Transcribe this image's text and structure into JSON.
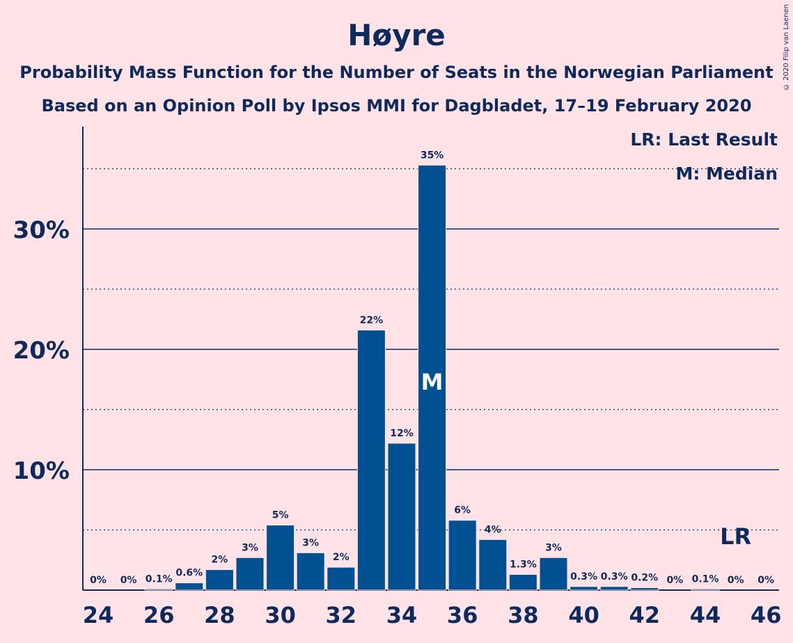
{
  "title": "Høyre",
  "subtitle1": "Probability Mass Function for the Number of Seats in the Norwegian Parliament",
  "subtitle2": "Based on an Opinion Poll by Ipsos MMI for Dagbladet, 17–19 February 2020",
  "credit": "© 2020 Filip van Laenen",
  "legend": {
    "lr": "LR: Last Result",
    "m": "M: Median"
  },
  "colors": {
    "bar": "#005092",
    "text": "#0d2a5e",
    "background": "#ffe3e6"
  },
  "chart_data": {
    "type": "bar",
    "categories": [
      24,
      25,
      26,
      27,
      28,
      29,
      30,
      31,
      32,
      33,
      34,
      35,
      36,
      37,
      38,
      39,
      40,
      41,
      42,
      43,
      44,
      45,
      46
    ],
    "values": [
      0,
      0,
      0.1,
      0.6,
      1.7,
      2.7,
      5.4,
      3.1,
      1.9,
      21.6,
      12.2,
      35.3,
      5.8,
      4.2,
      1.3,
      2.7,
      0.3,
      0.3,
      0.2,
      0,
      0.1,
      0,
      0
    ],
    "data_labels": [
      "0%",
      "0%",
      "0.1%",
      "0.6%",
      "2%",
      "3%",
      "5%",
      "3%",
      "2%",
      "22%",
      "12%",
      "35%",
      "6%",
      "4%",
      "1.3%",
      "3%",
      "0.3%",
      "0.3%",
      "0.2%",
      "0%",
      "0.1%",
      "0%",
      "0%"
    ],
    "x_ticks": [
      "24",
      "26",
      "28",
      "30",
      "32",
      "34",
      "36",
      "38",
      "40",
      "42",
      "44",
      "46"
    ],
    "y_ticks": [
      {
        "value": 10,
        "label": "10%"
      },
      {
        "value": 20,
        "label": "20%"
      },
      {
        "value": 30,
        "label": "30%"
      }
    ],
    "ylim": [
      0,
      38.5
    ],
    "median": 35,
    "median_label": "M",
    "last_result": 45,
    "last_result_label": "LR",
    "legend_position": "top-right"
  }
}
